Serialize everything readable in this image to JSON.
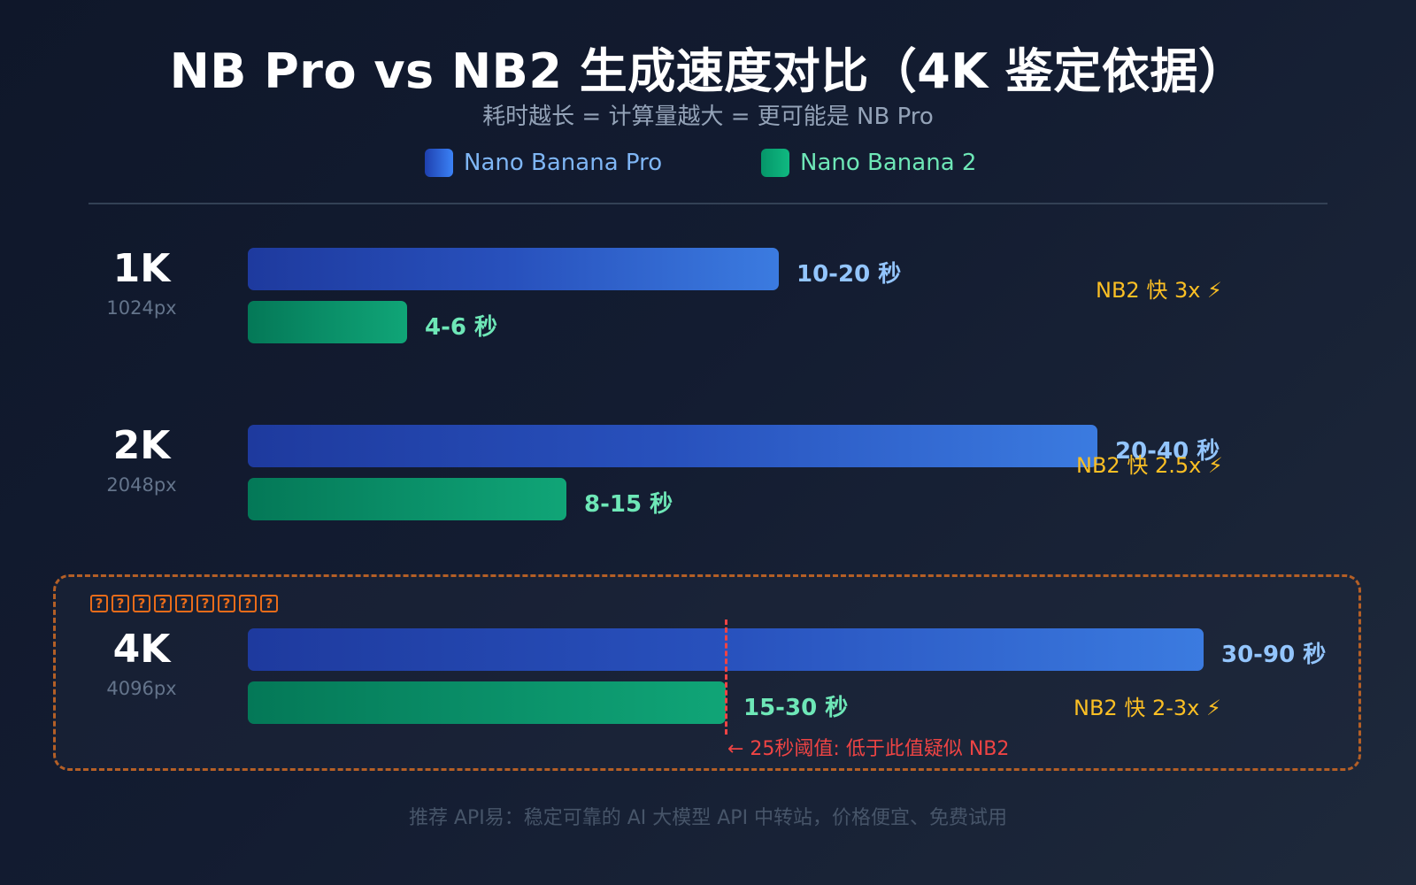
{
  "header": {
    "title": "NB Pro vs NB2 生成速度对比（4K 鉴定依据）",
    "subtitle": "耗时越长 = 计算量越大 = 更可能是 NB Pro"
  },
  "legend": [
    {
      "label": "Nano Banana Pro",
      "color": "#60a5fa",
      "swatch": "#2563eb"
    },
    {
      "label": "Nano Banana 2",
      "color": "#6ee7b7",
      "swatch": "#10b981"
    }
  ],
  "rows": [
    {
      "res": "1K",
      "px": "1024px",
      "pro_label": "10-20 秒",
      "nb2_label": "4-6 秒",
      "speedup": "NB2 快 3x ⚡",
      "pro_width": 600,
      "nb2_width": 180
    },
    {
      "res": "2K",
      "px": "2048px",
      "pro_label": "20-40 秒",
      "nb2_label": "8-15 秒",
      "speedup": "NB2 快 2.5x ⚡",
      "pro_width": 960,
      "nb2_width": 360
    },
    {
      "res": "4K",
      "px": "4096px",
      "pro_label": "30-90 秒",
      "nb2_label": "15-30 秒",
      "speedup": "NB2 快 2-3x ⚡",
      "pro_width": 1080,
      "nb2_width": 540
    }
  ],
  "highlight_box": {
    "label_glyphs": [
      "?",
      "?",
      "?",
      "?",
      "?",
      "?",
      "?",
      "?",
      "?"
    ],
    "threshold_text": "← 25秒阈值: 低于此值疑似 NB2"
  },
  "footer": "推荐 API易：稳定可靠的 AI 大模型 API 中转站，价格便宜、免费试用",
  "colors": {
    "pro": "#3b82f6",
    "nb2": "#10b981",
    "speedup": "#fbbf24",
    "threshold": "#ef4444",
    "box_border": "#b45f26"
  },
  "chart_data": {
    "type": "bar",
    "orientation": "horizontal",
    "title": "NB Pro vs NB2 生成速度对比（4K 鉴定依据）",
    "subtitle": "耗时越长 = 计算量越大 = 更可能是 NB Pro",
    "categories": [
      "1K (1024px)",
      "2K (2048px)",
      "4K (4096px)"
    ],
    "series": [
      {
        "name": "Nano Banana Pro",
        "ranges_seconds": [
          [
            10,
            20
          ],
          [
            20,
            40
          ],
          [
            30,
            90
          ]
        ],
        "labels": [
          "10-20 秒",
          "20-40 秒",
          "30-90 秒"
        ]
      },
      {
        "name": "Nano Banana 2",
        "ranges_seconds": [
          [
            4,
            6
          ],
          [
            8,
            15
          ],
          [
            15,
            30
          ]
        ],
        "labels": [
          "4-6 秒",
          "8-15 秒",
          "15-30 秒"
        ]
      }
    ],
    "annotations": [
      {
        "row": "1K",
        "text": "NB2 快 3x ⚡"
      },
      {
        "row": "2K",
        "text": "NB2 快 2.5x ⚡"
      },
      {
        "row": "4K",
        "text": "NB2 快 2-3x ⚡"
      },
      {
        "row": "4K",
        "type": "threshold",
        "value_seconds": 25,
        "text": "← 25秒阈值: 低于此值疑似 NB2"
      }
    ],
    "xlabel": "",
    "ylabel": "",
    "legend_position": "top",
    "grid": false
  }
}
